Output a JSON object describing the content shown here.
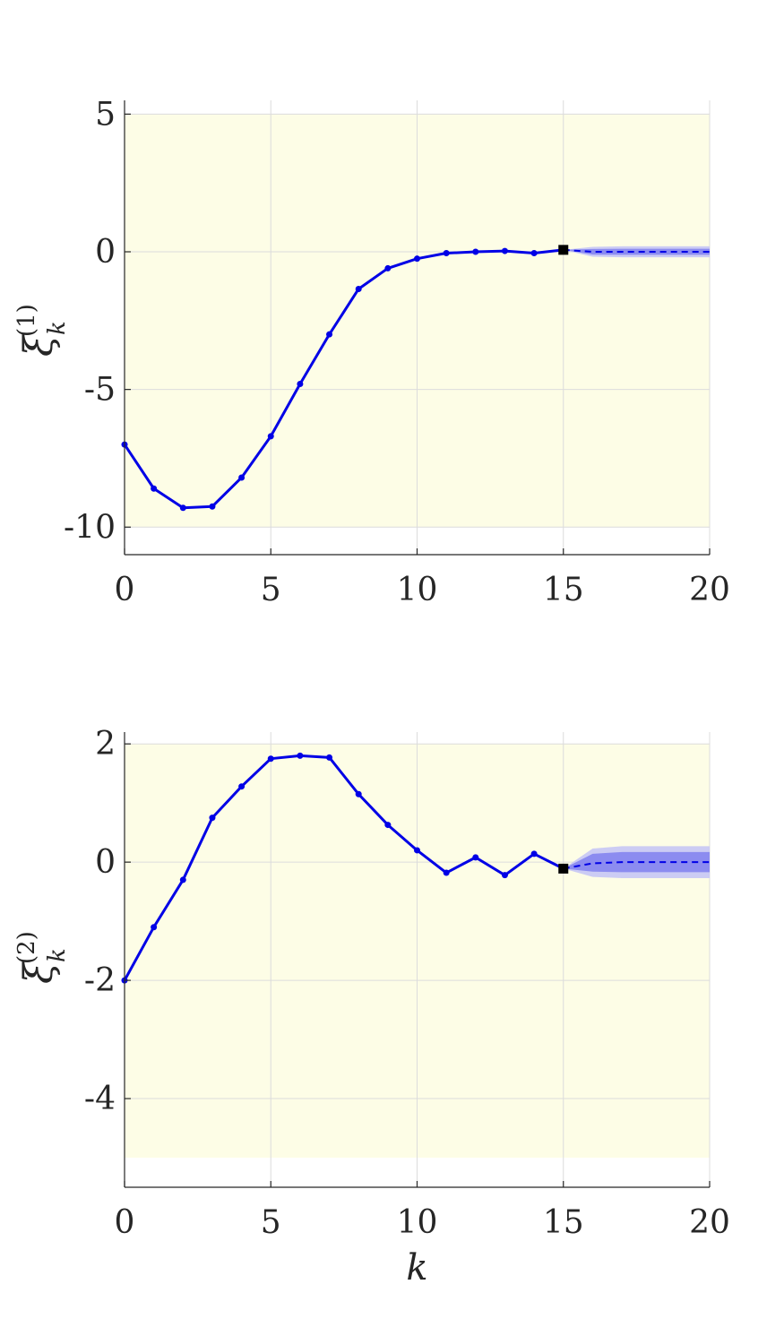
{
  "chart_data": [
    {
      "type": "line",
      "ylabel": {
        "symbol": "ξ",
        "sub": "k",
        "sup": "(1)"
      },
      "xlabel": "",
      "xlim": [
        0,
        20
      ],
      "ylim": [
        -11,
        5.5
      ],
      "shaded_region": [
        -10,
        5
      ],
      "xticks": [
        0,
        5,
        10,
        15,
        20
      ],
      "xtick_labels": [
        "0",
        "5",
        "10",
        "15",
        "20"
      ],
      "yticks": [
        5,
        0,
        -5,
        -10
      ],
      "ytick_labels": [
        "5",
        "0",
        "-5",
        "-10"
      ],
      "grid": true,
      "series": [
        {
          "x": [
            0,
            1,
            2,
            3,
            4,
            5,
            6,
            7,
            8,
            9,
            10,
            11,
            12,
            13,
            14,
            15
          ],
          "values": [
            -7.0,
            -8.6,
            -9.3,
            -9.25,
            -8.2,
            -6.7,
            -4.8,
            -3.0,
            -1.35,
            -0.6,
            -0.25,
            -0.05,
            0.0,
            0.03,
            -0.05,
            0.07
          ],
          "style": "solid-markers"
        },
        {
          "x": [
            15,
            16,
            17,
            18,
            19,
            20
          ],
          "values": [
            0.07,
            0.0,
            0.0,
            0.0,
            0.0,
            0.0
          ],
          "style": "dashed"
        }
      ],
      "current_point": {
        "x": 15,
        "y": 0.07
      },
      "uncertainty_bands": [
        {
          "x": [
            15,
            16,
            17,
            18,
            19,
            20
          ],
          "lower": [
            0.07,
            -0.18,
            -0.2,
            -0.2,
            -0.2,
            -0.2
          ],
          "upper": [
            0.07,
            0.18,
            0.2,
            0.2,
            0.2,
            0.2
          ]
        },
        {
          "x": [
            15,
            16,
            17,
            18,
            19,
            20
          ],
          "lower": [
            0.07,
            -0.1,
            -0.11,
            -0.11,
            -0.11,
            -0.11
          ],
          "upper": [
            0.07,
            0.1,
            0.11,
            0.11,
            0.11,
            0.11
          ]
        }
      ]
    },
    {
      "type": "line",
      "ylabel": {
        "symbol": "ξ",
        "sub": "k",
        "sup": "(2)"
      },
      "xlabel": "k",
      "xlim": [
        0,
        20
      ],
      "ylim": [
        -5.5,
        2.2
      ],
      "shaded_region": [
        -5,
        2
      ],
      "xticks": [
        0,
        5,
        10,
        15,
        20
      ],
      "xtick_labels": [
        "0",
        "5",
        "10",
        "15",
        "20"
      ],
      "yticks": [
        2,
        0,
        -2,
        -4
      ],
      "ytick_labels": [
        "2",
        "0",
        "-2",
        "-4"
      ],
      "grid": true,
      "series": [
        {
          "x": [
            0,
            1,
            2,
            3,
            4,
            5,
            6,
            7,
            8,
            9,
            10,
            11,
            12,
            13,
            14,
            15
          ],
          "values": [
            -2.0,
            -1.1,
            -0.3,
            0.75,
            1.28,
            1.75,
            1.8,
            1.77,
            1.15,
            0.63,
            0.2,
            -0.18,
            0.08,
            -0.22,
            0.14,
            -0.11
          ],
          "style": "solid-markers"
        },
        {
          "x": [
            15,
            16,
            17,
            18,
            19,
            20
          ],
          "values": [
            -0.11,
            -0.02,
            0.0,
            0.0,
            0.0,
            0.0
          ],
          "style": "dashed"
        }
      ],
      "current_point": {
        "x": 15,
        "y": -0.11
      },
      "uncertainty_bands": [
        {
          "x": [
            15,
            16,
            17,
            18,
            19,
            20
          ],
          "lower": [
            -0.11,
            -0.25,
            -0.27,
            -0.27,
            -0.27,
            -0.27
          ],
          "upper": [
            -0.11,
            0.23,
            0.27,
            0.27,
            0.27,
            0.27
          ]
        },
        {
          "x": [
            15,
            16,
            17,
            18,
            19,
            20
          ],
          "lower": [
            -0.11,
            -0.16,
            -0.17,
            -0.17,
            -0.17,
            -0.17
          ],
          "upper": [
            -0.11,
            0.14,
            0.17,
            0.17,
            0.17,
            0.17
          ]
        }
      ]
    }
  ],
  "colors": {
    "line": "#0000e6",
    "region": "#fdfde6",
    "band_outer": "#c7c7f5",
    "band_inner": "#8080ee",
    "current_point": "#000000",
    "grid": "#dcdcdc",
    "axis": "#262626"
  }
}
